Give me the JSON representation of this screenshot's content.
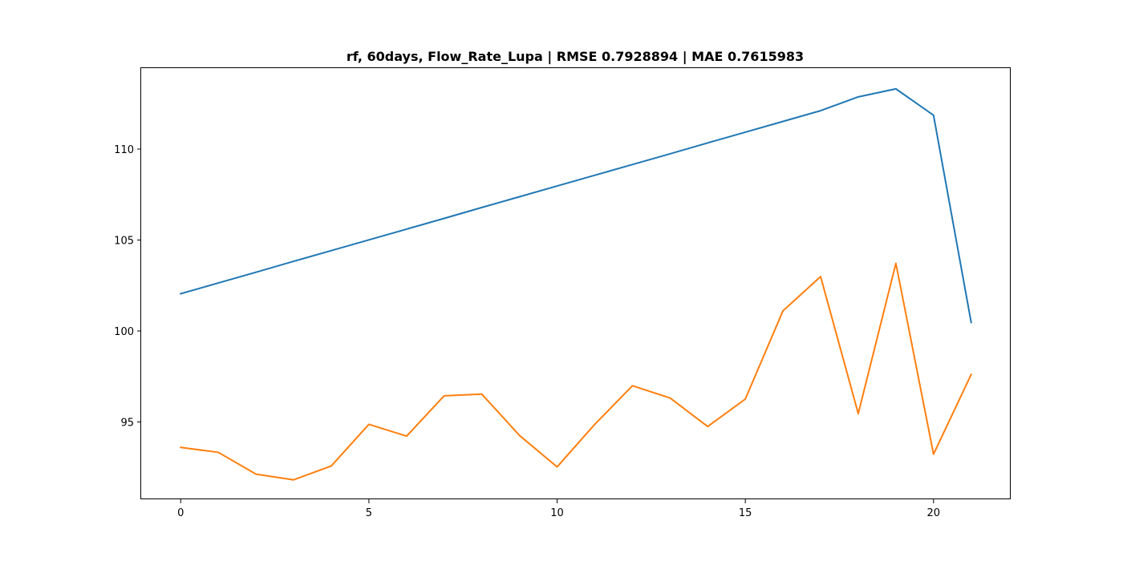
{
  "chart_data": {
    "type": "line",
    "title": "rf, 60days, Flow_Rate_Lupa | RMSE 0.7928894 | MAE 0.7615983",
    "xlabel": "",
    "ylabel": "",
    "xlim": [
      -1.05,
      22.05
    ],
    "ylim": [
      90.75,
      114.45
    ],
    "grid": false,
    "x": [
      0,
      1,
      2,
      3,
      4,
      5,
      6,
      7,
      8,
      9,
      10,
      11,
      12,
      13,
      14,
      15,
      16,
      17,
      18,
      19,
      20,
      21
    ],
    "xticks": [
      0,
      5,
      10,
      15,
      20
    ],
    "yticks": [
      95,
      100,
      105,
      110
    ],
    "xtick_labels": [
      "0",
      "5",
      "10",
      "15",
      "20"
    ],
    "ytick_labels": [
      "95",
      "100",
      "105",
      "110"
    ],
    "series": [
      {
        "color": "#1f77b4",
        "values": [
          102.05,
          102.64,
          103.23,
          103.83,
          104.42,
          105.01,
          105.6,
          106.19,
          106.79,
          107.38,
          107.97,
          108.56,
          109.15,
          109.74,
          110.34,
          110.93,
          111.52,
          112.11,
          112.87,
          113.31,
          111.86,
          100.47
        ]
      },
      {
        "color": "#ff7f0e",
        "values": [
          93.6,
          93.33,
          92.13,
          91.82,
          92.58,
          94.87,
          94.22,
          96.44,
          96.53,
          94.26,
          92.53,
          94.87,
          96.99,
          96.32,
          94.75,
          96.26,
          101.11,
          102.99,
          95.46,
          103.72,
          93.23,
          97.61
        ]
      }
    ]
  }
}
